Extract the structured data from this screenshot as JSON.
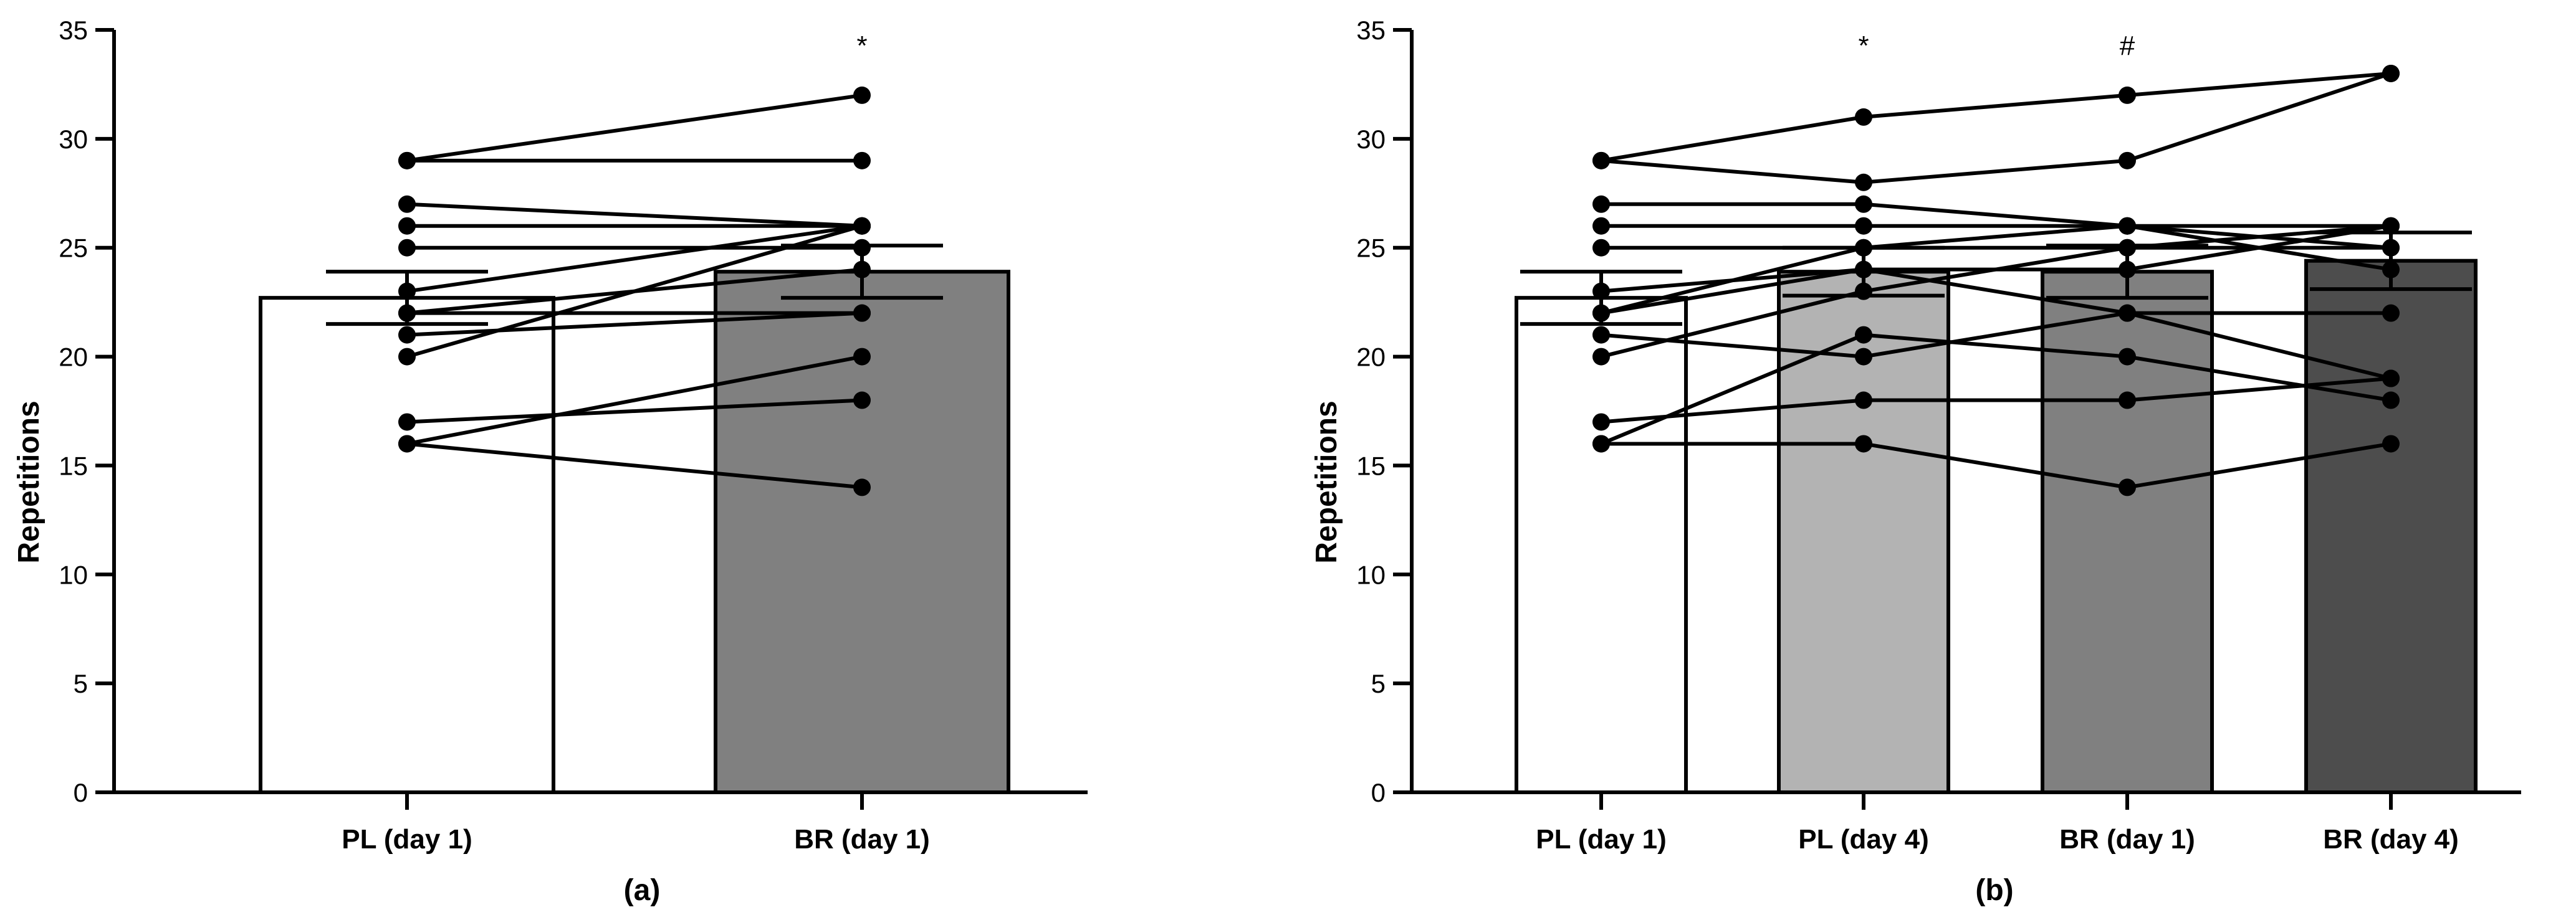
{
  "chart_data": [
    {
      "panel_label": "(a)",
      "type": "bar",
      "ylabel": "Repetitions",
      "ylim": [
        0,
        35
      ],
      "yticks": [
        0,
        5,
        10,
        15,
        20,
        25,
        30,
        35
      ],
      "categories": [
        "PL (day 1)",
        "BR (day 1)"
      ],
      "means": [
        22.7,
        23.9
      ],
      "errors": [
        1.2,
        1.2
      ],
      "bar_colors": [
        "#ffffff",
        "#808080"
      ],
      "significance": [
        "",
        "*"
      ],
      "subjects": [
        [
          29,
          32
        ],
        [
          29,
          29
        ],
        [
          27,
          26
        ],
        [
          26,
          26
        ],
        [
          25,
          25
        ],
        [
          23,
          26
        ],
        [
          22,
          24
        ],
        [
          22,
          22
        ],
        [
          21,
          22
        ],
        [
          20,
          26
        ],
        [
          17,
          18
        ],
        [
          16,
          20
        ],
        [
          16,
          14
        ]
      ]
    },
    {
      "panel_label": "(b)",
      "type": "bar",
      "ylabel": "Repetitions",
      "ylim": [
        0,
        35
      ],
      "yticks": [
        0,
        5,
        10,
        15,
        20,
        25,
        30,
        35
      ],
      "categories": [
        "PL (day 1)",
        "PL (day 4)",
        "BR (day 1)",
        "BR (day 4)"
      ],
      "means": [
        22.7,
        23.9,
        23.9,
        24.4
      ],
      "errors": [
        1.2,
        1.1,
        1.2,
        1.3
      ],
      "bar_colors": [
        "#ffffff",
        "#b3b3b3",
        "#808080",
        "#4d4d4d"
      ],
      "significance": [
        "",
        "*",
        "#",
        ""
      ],
      "subjects": [
        [
          29,
          31,
          32,
          33
        ],
        [
          29,
          28,
          29,
          33
        ],
        [
          27,
          27,
          26,
          26
        ],
        [
          26,
          26,
          26,
          25
        ],
        [
          25,
          25,
          25,
          25
        ],
        [
          23,
          24,
          24,
          26
        ],
        [
          22,
          25,
          26,
          24
        ],
        [
          22,
          24,
          22,
          22
        ],
        [
          21,
          20,
          22,
          19
        ],
        [
          20,
          23,
          25,
          26
        ],
        [
          17,
          18,
          18,
          19
        ],
        [
          16,
          21,
          20,
          18
        ],
        [
          16,
          16,
          14,
          16
        ]
      ]
    }
  ]
}
